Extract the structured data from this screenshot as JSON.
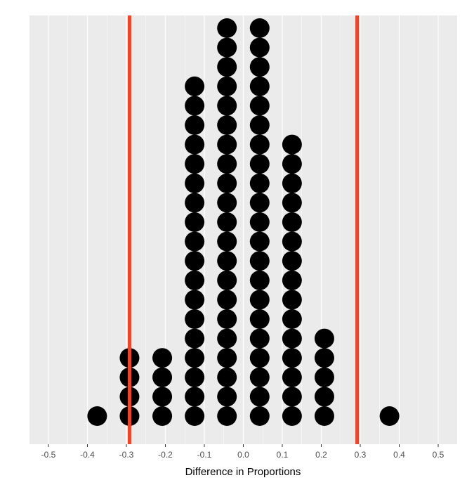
{
  "chart_data": {
    "type": "scatter",
    "subtype": "dotplot",
    "title": "",
    "xlabel": "Difference in Proportions",
    "ylabel": "",
    "xlim": [
      -0.55,
      0.55
    ],
    "xticks": [
      -0.5,
      -0.4,
      -0.3,
      -0.2,
      -0.1,
      0.0,
      0.1,
      0.2,
      0.3,
      0.4,
      0.5
    ],
    "xtick_labels": [
      "-0.5",
      "-0.4",
      "-0.3",
      "-0.2",
      "-0.1",
      "0.0",
      "0.1",
      "0.2",
      "0.3",
      "0.4",
      "0.5"
    ],
    "grid": true,
    "legend": "none",
    "stacks": [
      {
        "x": -0.375,
        "count": 1
      },
      {
        "x": -0.292,
        "count": 4
      },
      {
        "x": -0.208,
        "count": 4
      },
      {
        "x": -0.125,
        "count": 18
      },
      {
        "x": -0.042,
        "count": 21
      },
      {
        "x": 0.042,
        "count": 21
      },
      {
        "x": 0.125,
        "count": 15
      },
      {
        "x": 0.208,
        "count": 5
      },
      {
        "x": 0.375,
        "count": 1
      }
    ],
    "reference_lines": [
      {
        "x": -0.292,
        "color": "#e8472e"
      },
      {
        "x": 0.292,
        "color": "#e8472e"
      }
    ],
    "colors": {
      "panel_background": "#ebebeb",
      "grid": "#ffffff",
      "dots": "#000000",
      "reference_line": "#e8472e"
    }
  }
}
